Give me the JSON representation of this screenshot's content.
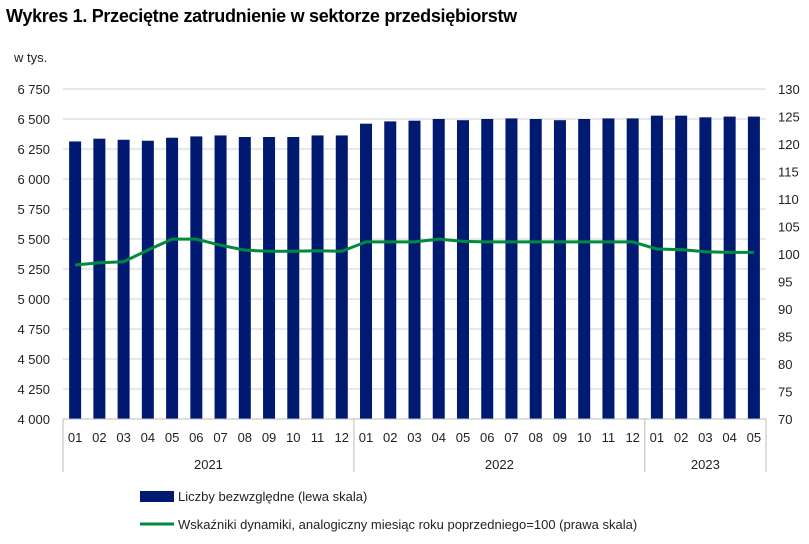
{
  "chart_data": {
    "type": "bar+line",
    "title": "Wykres 1. Przeciętne zatrudnienie w sektorze przedsiębiorstw",
    "ylabel_left": "w tys.",
    "ylim_left": [
      4000,
      6750
    ],
    "yticks_left": [
      "4 000",
      "4 250",
      "4 500",
      "4 750",
      "5 000",
      "5 250",
      "5 500",
      "5 750",
      "6 000",
      "6 250",
      "6 500",
      "6 750"
    ],
    "ylim_right": [
      70,
      130
    ],
    "yticks_right": [
      "70",
      "75",
      "80",
      "85",
      "90",
      "95",
      "100",
      "105",
      "110",
      "115",
      "120",
      "125",
      "130"
    ],
    "grid": true,
    "legend_placement": "bottom",
    "categories": [
      "01",
      "02",
      "03",
      "04",
      "05",
      "06",
      "07",
      "08",
      "09",
      "10",
      "11",
      "12",
      "01",
      "02",
      "03",
      "04",
      "05",
      "06",
      "07",
      "08",
      "09",
      "10",
      "11",
      "12",
      "01",
      "02",
      "03",
      "04",
      "05"
    ],
    "groups": [
      {
        "label": "2021",
        "count": 12
      },
      {
        "label": "2022",
        "count": 12
      },
      {
        "label": "2023",
        "count": 5
      }
    ],
    "series": [
      {
        "name": "Liczby bezwzględne (lewa skala)",
        "type": "bar",
        "axis": "left",
        "color": "#001a72",
        "values": [
          6313,
          6336,
          6327,
          6319,
          6344,
          6355,
          6363,
          6350,
          6350,
          6350,
          6363,
          6363,
          6461,
          6480,
          6486,
          6500,
          6490,
          6500,
          6505,
          6500,
          6490,
          6500,
          6505,
          6505,
          6528,
          6528,
          6514,
          6520,
          6520
        ]
      },
      {
        "name": "Wskaźniki dynamiki, analogiczny miesiąc roku poprzedniego=100 (prawa skala)",
        "type": "line",
        "axis": "right",
        "color": "#008a3e",
        "values": [
          98.0,
          98.4,
          98.6,
          100.7,
          102.7,
          102.7,
          101.6,
          100.7,
          100.5,
          100.5,
          100.6,
          100.5,
          102.2,
          102.2,
          102.2,
          102.7,
          102.3,
          102.2,
          102.2,
          102.2,
          102.2,
          102.2,
          102.2,
          102.2,
          100.9,
          100.8,
          100.4,
          100.3,
          100.3
        ]
      }
    ]
  }
}
